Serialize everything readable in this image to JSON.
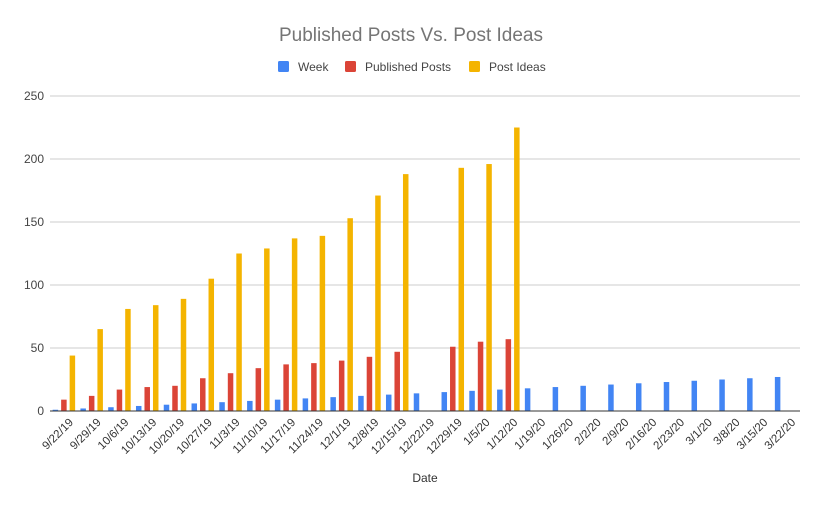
{
  "chart_data": {
    "type": "bar",
    "title": "Published Posts Vs. Post Ideas",
    "xlabel": "Date",
    "ylabel": "",
    "ylim": [
      0,
      250
    ],
    "yticks": [
      0,
      50,
      100,
      150,
      200,
      250
    ],
    "grid": true,
    "legend_position": "top",
    "categories": [
      "9/22/19",
      "9/29/19",
      "10/6/19",
      "10/13/19",
      "10/20/19",
      "10/27/19",
      "11/3/19",
      "11/10/19",
      "11/17/19",
      "11/24/19",
      "12/1/19",
      "12/8/19",
      "12/15/19",
      "12/22/19",
      "12/29/19",
      "1/5/20",
      "1/12/20",
      "1/19/20",
      "1/26/20",
      "2/2/20",
      "2/9/20",
      "2/16/20",
      "2/23/20",
      "3/1/20",
      "3/8/20",
      "3/15/20",
      "3/22/20"
    ],
    "series": [
      {
        "name": "Week",
        "color": "#4285f4",
        "values": [
          1,
          2,
          3,
          4,
          5,
          6,
          7,
          8,
          9,
          10,
          11,
          12,
          13,
          14,
          15,
          16,
          17,
          18,
          19,
          20,
          21,
          22,
          23,
          24,
          25,
          26,
          27
        ]
      },
      {
        "name": "Published Posts",
        "color": "#db4437",
        "values": [
          9,
          12,
          17,
          19,
          20,
          26,
          30,
          34,
          37,
          38,
          40,
          43,
          47,
          null,
          51,
          55,
          57,
          null,
          null,
          null,
          null,
          null,
          null,
          null,
          null,
          null,
          null
        ]
      },
      {
        "name": "Post Ideas",
        "color": "#f4b400",
        "values": [
          44,
          65,
          81,
          84,
          89,
          105,
          125,
          129,
          137,
          139,
          153,
          171,
          188,
          null,
          193,
          196,
          225,
          null,
          null,
          null,
          null,
          null,
          null,
          null,
          null,
          null,
          null
        ]
      }
    ]
  }
}
